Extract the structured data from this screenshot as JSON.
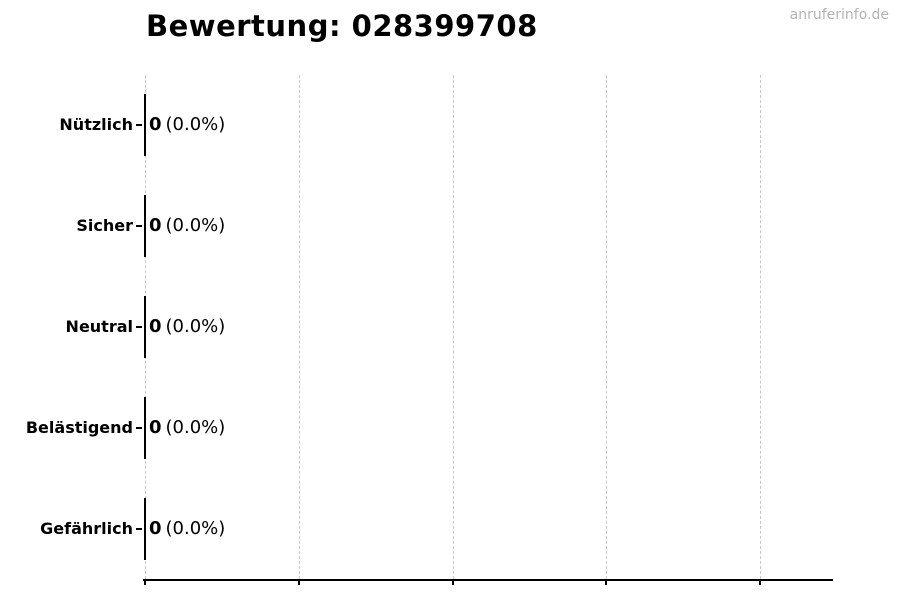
{
  "watermark": "anruferinfo.de",
  "chart_data": {
    "type": "bar",
    "orientation": "horizontal",
    "title": "Bewertung: 028399708",
    "categories": [
      "Nützlich",
      "Sicher",
      "Neutral",
      "Belästigend",
      "Gefährlich"
    ],
    "values": [
      0,
      0,
      0,
      0,
      0
    ],
    "percents": [
      "0.0%",
      "0.0%",
      "0.0%",
      "0.0%",
      "0.0%"
    ],
    "value_label_format": "count (percent)",
    "xlim": [
      0,
      1.117
    ],
    "xticks": [
      0,
      0.25,
      0.5,
      0.75,
      1.0
    ],
    "grid": "vertical-dashed",
    "legend": "none",
    "colors": {
      "background": "#ffffff",
      "bar_edge": "#000000",
      "grid": "#c9c9c9",
      "axis": "#000000",
      "text": "#000000",
      "watermark": "#b4b4b4"
    }
  }
}
